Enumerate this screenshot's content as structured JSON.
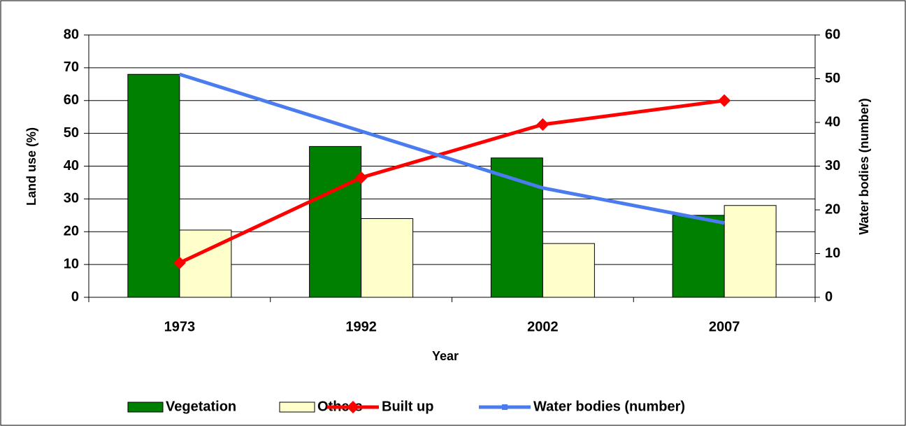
{
  "chart_data": {
    "type": "bar",
    "categories": [
      "1973",
      "1992",
      "2002",
      "2007"
    ],
    "xlabel": "Year",
    "ylabel": "Land use (%)",
    "y2label": "Water bodies (number)",
    "ylim": [
      0,
      80
    ],
    "yticks": [
      0,
      10,
      20,
      30,
      40,
      50,
      60,
      70,
      80
    ],
    "y2lim": [
      0,
      60
    ],
    "y2ticks": [
      0,
      10,
      20,
      30,
      40,
      50,
      60
    ],
    "grid": true,
    "legend": "bottom",
    "series": [
      {
        "name": "Vegetation",
        "type": "bar",
        "color": "#008000",
        "values": [
          68,
          46,
          42.5,
          25
        ]
      },
      {
        "name": "Others",
        "type": "bar",
        "color": "#ffffcc",
        "values": [
          20.5,
          24,
          16.4,
          28
        ]
      },
      {
        "name": "Built up",
        "type": "line",
        "marker": "diamond",
        "color": "#ff0000",
        "values": [
          10.5,
          36.5,
          52.7,
          60
        ]
      },
      {
        "name": "Water bodies (number)",
        "type": "line",
        "marker": "square",
        "axis": "y2",
        "color": "#4a7bef",
        "values": [
          51,
          38,
          25,
          17
        ]
      }
    ]
  }
}
